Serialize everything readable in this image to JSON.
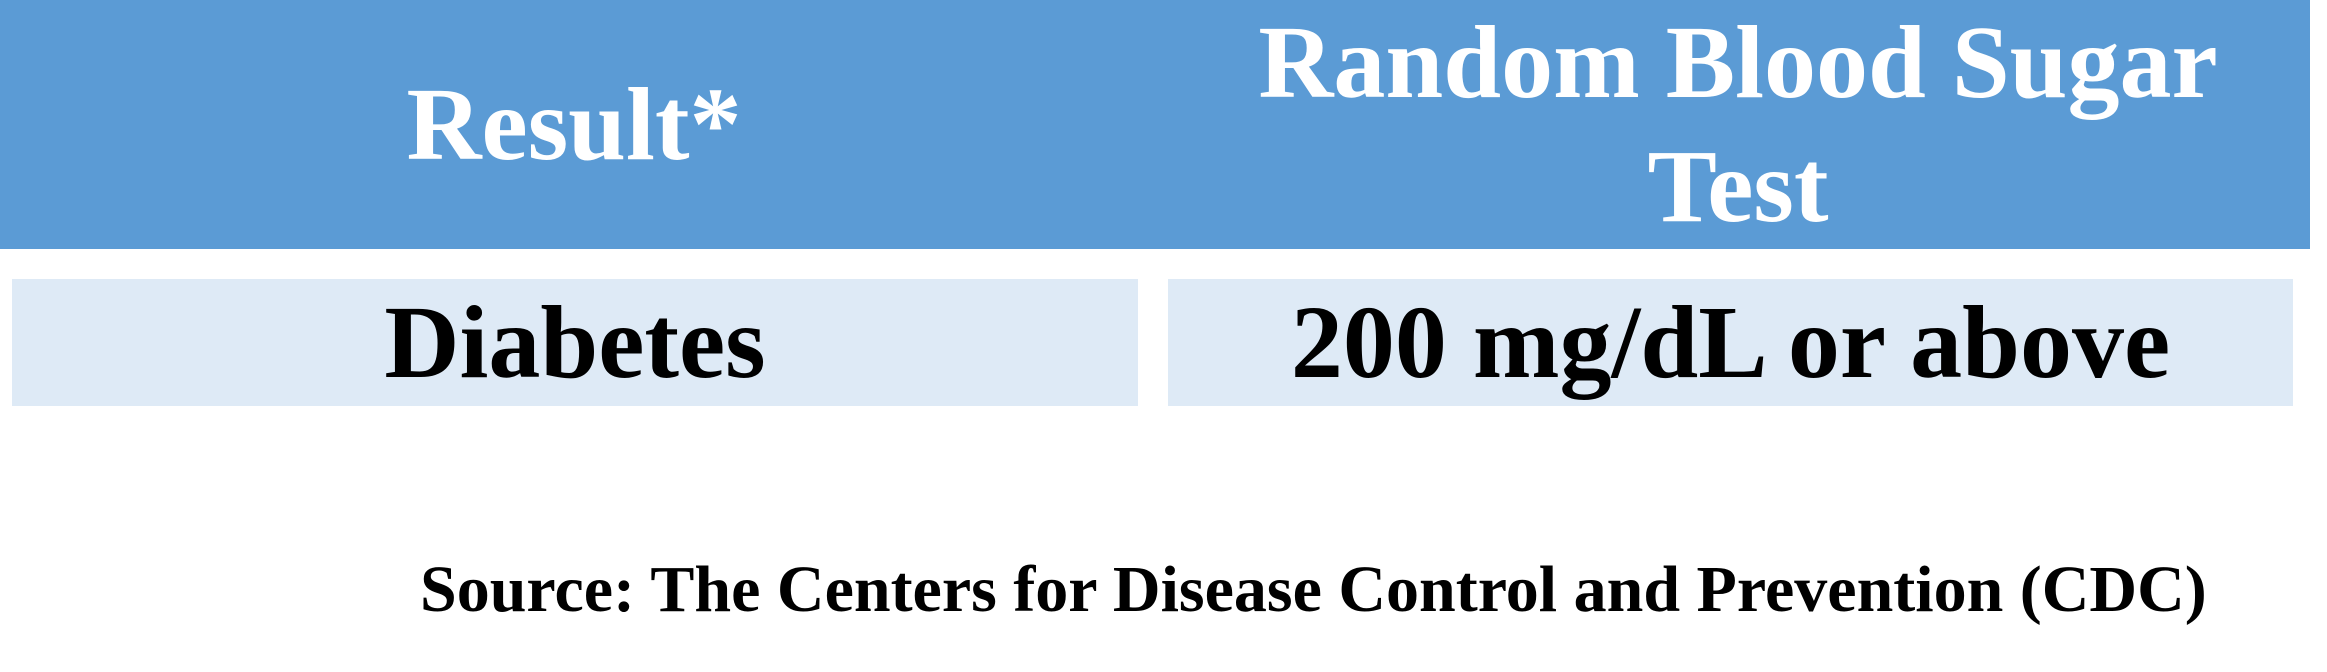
{
  "table": {
    "header": {
      "result_label": "Result*",
      "test_label": "Random Blood Sugar Test"
    },
    "rows": [
      {
        "result": "Diabetes",
        "test_value": "200 mg/dL or above"
      }
    ]
  },
  "source_note": "Source: The Centers for Disease Control and Prevention (CDC)",
  "colors": {
    "header_background": "#5b9bd5",
    "row_background": "#deeaf6",
    "header_text": "#ffffff",
    "body_text": "#000000"
  }
}
